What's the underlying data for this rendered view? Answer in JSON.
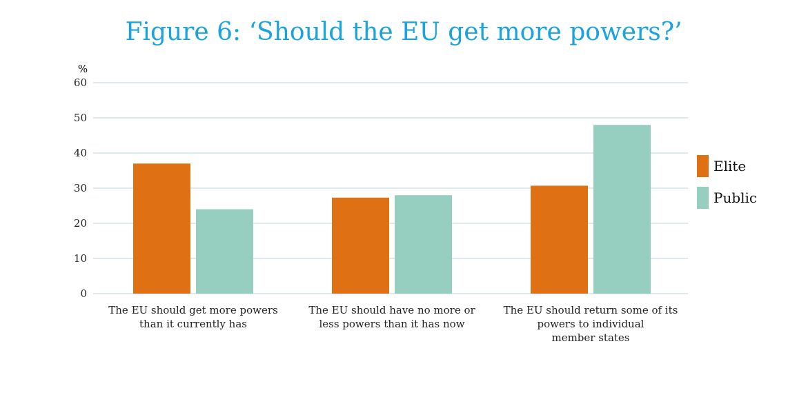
{
  "chart_data": {
    "type": "bar",
    "title": "Figure 6: ‘Should the EU get more powers?’",
    "ylabel": "%",
    "xlabel": "",
    "ylim": [
      0,
      60
    ],
    "yticks": [
      0,
      10,
      20,
      30,
      40,
      50,
      60
    ],
    "grid": true,
    "legend_position": "right",
    "categories": [
      [
        "The EU should get more powers",
        "than it currently has"
      ],
      [
        "The EU should have no more or",
        "less powers than it has now"
      ],
      [
        "The EU should return some of its",
        "powers to individual",
        "member states"
      ]
    ],
    "series": [
      {
        "name": "Elite",
        "color": "#e07014",
        "values": [
          37,
          27.3,
          30.7
        ]
      },
      {
        "name": "Public",
        "color": "#96cebf",
        "values": [
          24,
          28,
          48
        ]
      }
    ],
    "colors": {
      "title": "#1aa3dc",
      "grid": "#bcd3dc",
      "text": "#222222"
    }
  }
}
